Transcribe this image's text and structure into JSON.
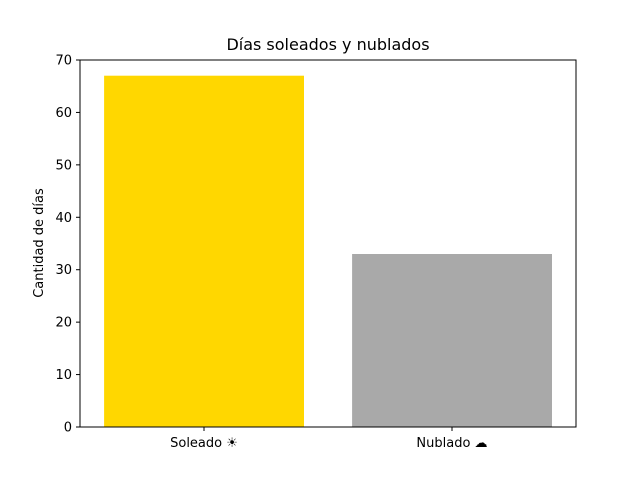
{
  "chart_data": {
    "type": "bar",
    "title": "Días soleados y nublados",
    "xlabel": "",
    "ylabel": "Cantidad de días",
    "categories": [
      "Soleado ☀",
      "Nublado ☁"
    ],
    "values": [
      67,
      33
    ],
    "colors": [
      "#FFD700",
      "#A9A9A9"
    ],
    "ylim": [
      0,
      70
    ],
    "yticks": [
      0,
      10,
      20,
      30,
      40,
      50,
      60,
      70
    ],
    "grid": false,
    "legend": "none"
  }
}
